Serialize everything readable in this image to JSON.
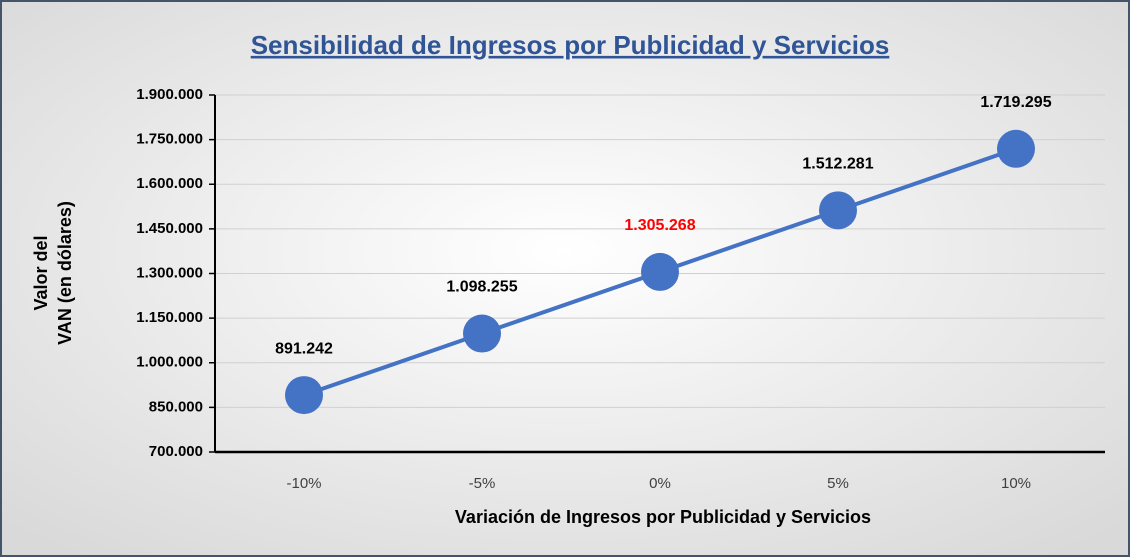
{
  "chart_data": {
    "type": "line",
    "title": "Sensibilidad de Ingresos por Publicidad y Servicios",
    "xlabel": "Variación de Ingresos por Publicidad y Servicios",
    "ylabel": [
      "Valor del",
      "VAN  (en dólares)"
    ],
    "categories": [
      "-10%",
      "-5%",
      "0%",
      "5%",
      "10%"
    ],
    "values": [
      891242,
      1098255,
      1305268,
      1512281,
      1719295
    ],
    "value_labels": [
      "891.242",
      "1.098.255",
      "1.305.268",
      "1.512.281",
      "1.719.295"
    ],
    "value_label_colors": [
      "#000000",
      "#000000",
      "#ff0000",
      "#000000",
      "#000000"
    ],
    "color": "#4472c4",
    "ylim": [
      700000,
      1900000
    ],
    "yticks": [
      {
        "value": 700000,
        "label": "700.000"
      },
      {
        "value": 850000,
        "label": "850.000"
      },
      {
        "value": 1000000,
        "label": "1.000.000"
      },
      {
        "value": 1150000,
        "label": "1.150.000"
      },
      {
        "value": 1300000,
        "label": "1.300.000"
      },
      {
        "value": 1450000,
        "label": "1.450.000"
      },
      {
        "value": 1600000,
        "label": "1.600.000"
      },
      {
        "value": 1750000,
        "label": "1.750.000"
      },
      {
        "value": 1900000,
        "label": "1.900.000"
      }
    ],
    "grid": true
  }
}
